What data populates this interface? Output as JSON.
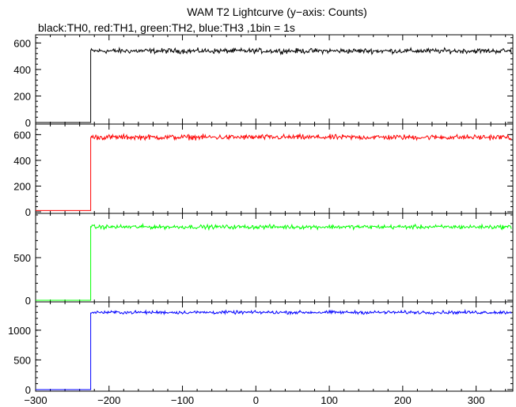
{
  "header": {
    "title": "WAM T2 Lightcurve (y−axis: Counts)",
    "subtitle": "black:TH0, red:TH1, green:TH2, blue:TH3 ,1bin = 1s"
  },
  "chart_data": [
    {
      "type": "line",
      "series": [
        {
          "name": "TH0",
          "color": "#000000",
          "baseline": 0,
          "level": 540,
          "noise": 28
        }
      ],
      "x_switch": -225,
      "xlim": [
        -300,
        350
      ],
      "ylim": [
        0,
        650
      ],
      "yticks": [
        0,
        200,
        400,
        600
      ],
      "ytick_labels": [
        "0",
        "200",
        "400",
        "600"
      ],
      "grid": false
    },
    {
      "type": "line",
      "series": [
        {
          "name": "TH1",
          "color": "#ff0000",
          "baseline": 10,
          "level": 580,
          "noise": 30
        }
      ],
      "x_switch": -225,
      "xlim": [
        -300,
        350
      ],
      "ylim": [
        0,
        670
      ],
      "yticks": [
        0,
        200,
        400,
        600
      ],
      "ytick_labels": [
        "0",
        "200",
        "400",
        "600"
      ],
      "grid": false
    },
    {
      "type": "line",
      "series": [
        {
          "name": "TH2",
          "color": "#00ff00",
          "baseline": 0,
          "level": 860,
          "noise": 35
        }
      ],
      "x_switch": -225,
      "xlim": [
        -300,
        350
      ],
      "ylim": [
        0,
        1000
      ],
      "yticks": [
        0,
        500
      ],
      "ytick_labels": [
        "0",
        "500"
      ],
      "grid": false
    },
    {
      "type": "line",
      "series": [
        {
          "name": "TH3",
          "color": "#0000ff",
          "baseline": 0,
          "level": 1300,
          "noise": 40
        }
      ],
      "x_switch": -225,
      "xlim": [
        -300,
        350
      ],
      "ylim": [
        0,
        1450
      ],
      "yticks": [
        0,
        500,
        1000
      ],
      "ytick_labels": [
        "0",
        "500",
        "1000"
      ],
      "grid": false
    }
  ],
  "x_axis": {
    "ticks": [
      -300,
      -200,
      -100,
      0,
      100,
      200,
      300
    ],
    "tick_labels": [
      "−300",
      "−200",
      "−100",
      "0",
      "100",
      "200",
      "300"
    ]
  }
}
